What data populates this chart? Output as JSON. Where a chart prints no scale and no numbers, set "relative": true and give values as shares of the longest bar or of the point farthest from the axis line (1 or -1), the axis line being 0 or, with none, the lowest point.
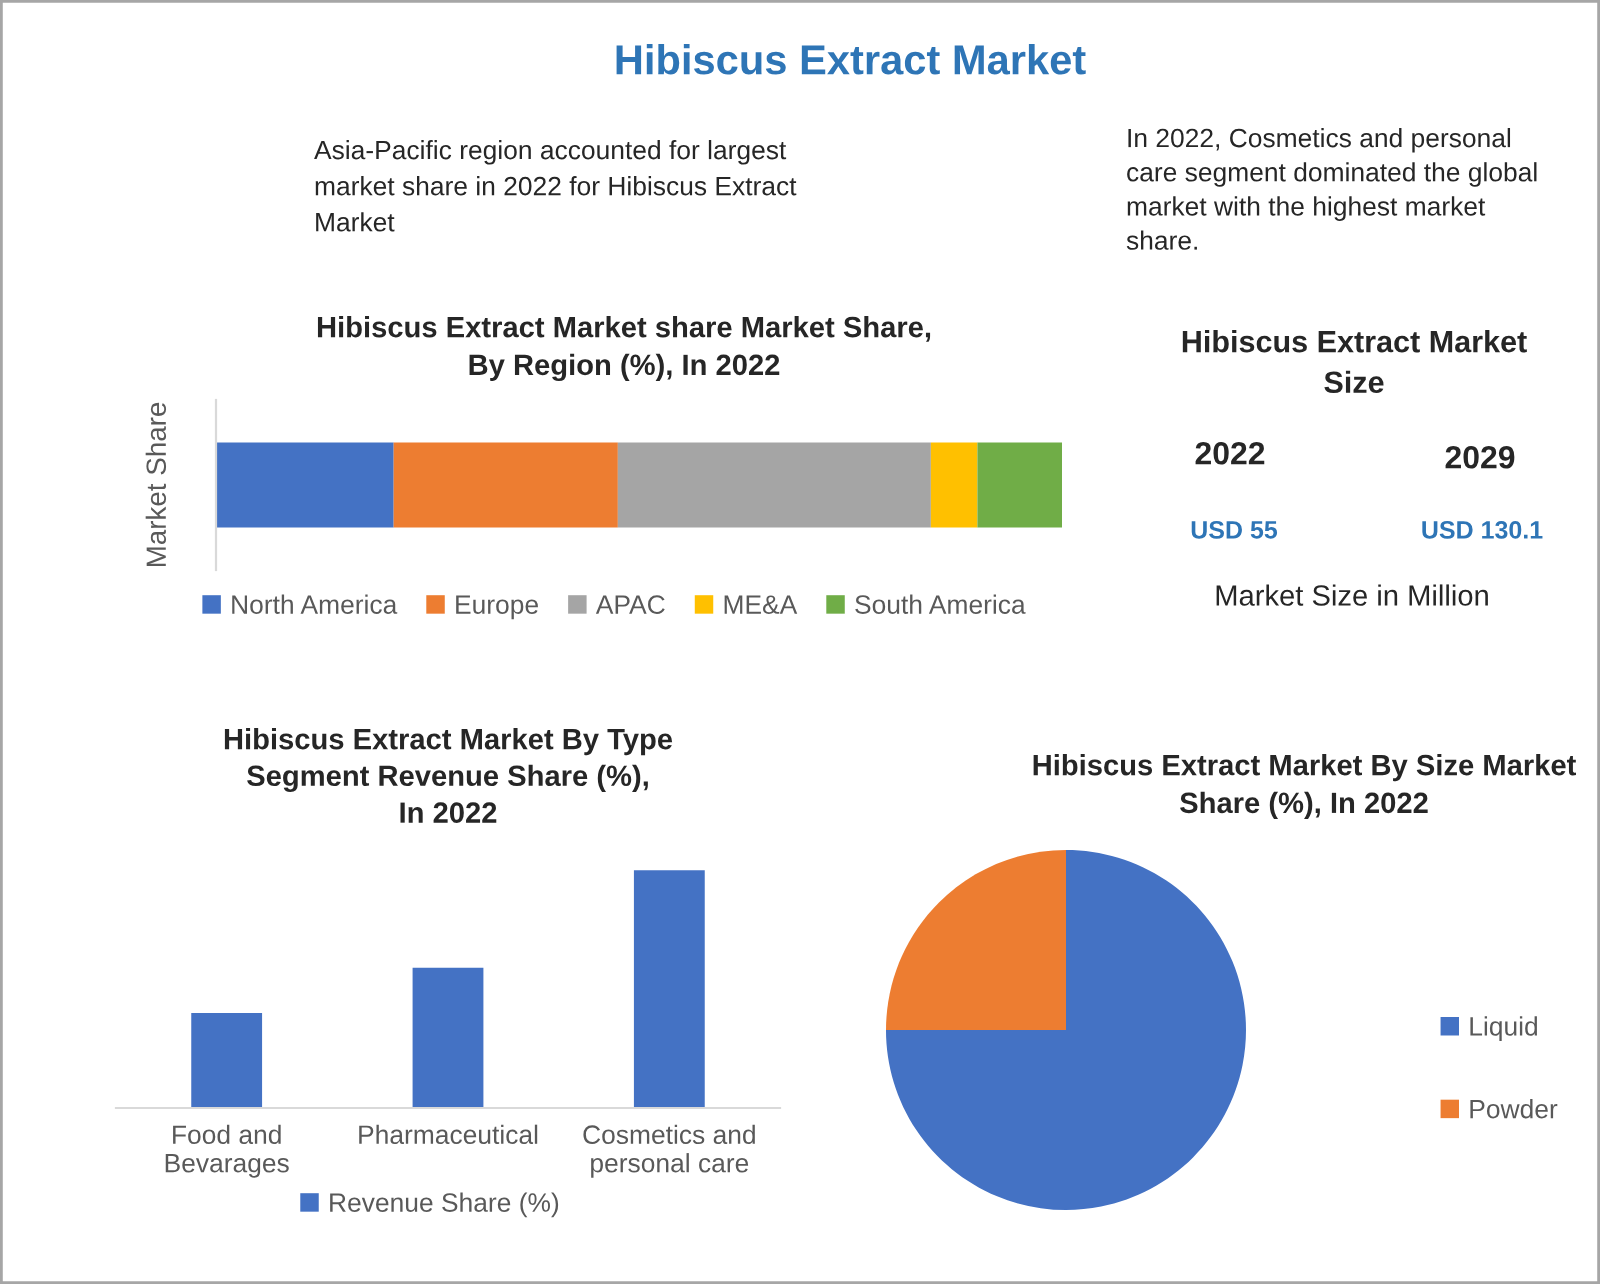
{
  "chart_data": [
    {
      "type": "other",
      "title": "Hibiscus Extract Market",
      "annotations": [
        "Asia-Pacific region accounted for largest\nmarket share in 2022 for Hibiscus Extract\nMarket",
        "In 2022, Cosmetics and personal\ncare segment dominated the global\nmarket with the highest market\nshare."
      ]
    },
    {
      "type": "bar",
      "title": "Hibiscus Extract Market share Market Share,\nBy Region (%), In 2022",
      "ylabel": "Market Share",
      "categories": [
        null
      ],
      "orientation": "horizontal",
      "stacked": true,
      "relative": true,
      "legend": "bottom",
      "series": [
        {
          "name": "North America",
          "color": "#4472c4",
          "values": [
            0.21
          ]
        },
        {
          "name": "Europe",
          "color": "#ed7d31",
          "values": [
            0.265
          ]
        },
        {
          "name": "APAC",
          "color": "#a5a5a5",
          "values": [
            0.37
          ]
        },
        {
          "name": "ME&A",
          "color": "#ffc000",
          "values": [
            0.055
          ]
        },
        {
          "name": "South America",
          "color": "#70ad47",
          "values": [
            0.1
          ]
        }
      ]
    },
    {
      "type": "other",
      "title": "Hibiscus Extract Market\nSize",
      "annotations": [
        "2022",
        "2029",
        "USD 55",
        "USD 130.1",
        "Market Size in Million"
      ]
    },
    {
      "type": "bar",
      "title": "Hibiscus Extract Market By Type\nSegment Revenue Share (%),\nIn 2022",
      "categories": [
        "Food and\nBevarages",
        "Pharmaceutical",
        "Cosmetics and\npersonal care"
      ],
      "relative": true,
      "legend": "bottom",
      "series": [
        {
          "name": "Revenue Share (%)",
          "color": "#4472c4",
          "values": [
            0.4,
            0.59,
            1
          ]
        }
      ]
    },
    {
      "type": "pie",
      "title": "Hibiscus Extract Market By Size Market\nShare (%), In 2022",
      "categories": [
        "Liquid",
        "Powder"
      ],
      "values": [
        75,
        25
      ],
      "colors": [
        "#4472c4",
        "#ed7d31"
      ],
      "legend": "right"
    }
  ]
}
